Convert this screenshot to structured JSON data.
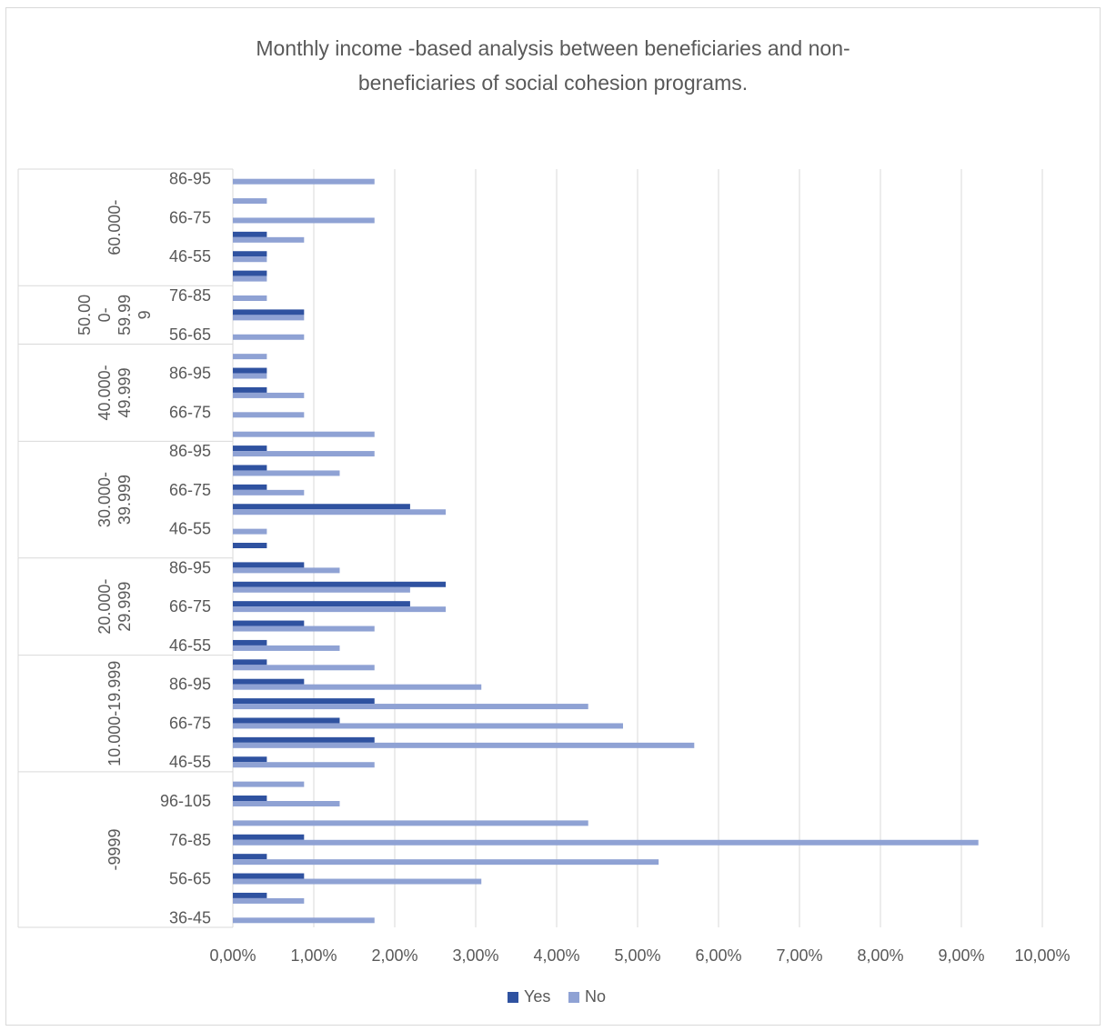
{
  "chart_data": {
    "type": "bar",
    "orientation": "horizontal",
    "title": "Monthly income -based analysis between beneficiaries and non-beneficiaries of social cohesion programs.",
    "title_lines": [
      "Monthly income -based analysis between beneficiaries and non-",
      "beneficiaries of social cohesion programs."
    ],
    "x_ticks": [
      "0,00%",
      "1,00%",
      "2,00%",
      "3,00%",
      "4,00%",
      "5,00%",
      "6,00%",
      "7,00%",
      "8,00%",
      "9,00%",
      "10,00%"
    ],
    "xlim": [
      0,
      10
    ],
    "grid": true,
    "legend_position": "bottom",
    "series": [
      {
        "name": "Yes",
        "color": "#2f52a0"
      },
      {
        "name": "No",
        "color": "#8fa2d4"
      }
    ],
    "groups": [
      {
        "label": "-9999",
        "label_lines": [
          "-9999"
        ],
        "rows": [
          {
            "label": "36-45",
            "yes": 0,
            "no": 1.75
          },
          {
            "label": "",
            "yes": 0.42,
            "no": 0.88
          },
          {
            "label": "56-65",
            "yes": 0.88,
            "no": 3.07
          },
          {
            "label": "",
            "yes": 0.42,
            "no": 5.26
          },
          {
            "label": "76-85",
            "yes": 0.88,
            "no": 9.21
          },
          {
            "label": "",
            "yes": 0,
            "no": 4.39
          },
          {
            "label": "96-105",
            "yes": 0.42,
            "no": 1.32
          },
          {
            "label": "",
            "yes": 0,
            "no": 0.88
          }
        ]
      },
      {
        "label": "10.000-19.999",
        "label_lines": [
          "10.000-19.999"
        ],
        "rows": [
          {
            "label": "46-55",
            "yes": 0.42,
            "no": 1.75
          },
          {
            "label": "",
            "yes": 1.75,
            "no": 5.7
          },
          {
            "label": "66-75",
            "yes": 1.32,
            "no": 4.82
          },
          {
            "label": "",
            "yes": 1.75,
            "no": 4.39
          },
          {
            "label": "86-95",
            "yes": 0.88,
            "no": 3.07
          },
          {
            "label": "",
            "yes": 0.42,
            "no": 1.75
          }
        ]
      },
      {
        "label": "20.000-29.999",
        "label_lines": [
          "20.000-",
          "29.999"
        ],
        "rows": [
          {
            "label": "46-55",
            "yes": 0.42,
            "no": 1.32
          },
          {
            "label": "",
            "yes": 0.88,
            "no": 1.75
          },
          {
            "label": "66-75",
            "yes": 2.19,
            "no": 2.63
          },
          {
            "label": "",
            "yes": 2.63,
            "no": 2.19
          },
          {
            "label": "86-95",
            "yes": 0.88,
            "no": 1.32
          }
        ]
      },
      {
        "label": "30.000-39.999",
        "label_lines": [
          "30.000-",
          "39.999"
        ],
        "rows": [
          {
            "label": "",
            "yes": 0.42,
            "no": 0
          },
          {
            "label": "46-55",
            "yes": 0,
            "no": 0.42
          },
          {
            "label": "",
            "yes": 2.19,
            "no": 2.63
          },
          {
            "label": "66-75",
            "yes": 0.42,
            "no": 0.88
          },
          {
            "label": "",
            "yes": 0.42,
            "no": 1.32
          },
          {
            "label": "86-95",
            "yes": 0.42,
            "no": 1.75
          }
        ]
      },
      {
        "label": "40.000-49.999",
        "label_lines": [
          "40.000-",
          "49.999"
        ],
        "rows": [
          {
            "label": "",
            "yes": 0,
            "no": 1.75
          },
          {
            "label": "66-75",
            "yes": 0,
            "no": 0.88
          },
          {
            "label": "",
            "yes": 0.42,
            "no": 0.88
          },
          {
            "label": "86-95",
            "yes": 0.42,
            "no": 0.42
          },
          {
            "label": "",
            "yes": 0,
            "no": 0.42
          }
        ]
      },
      {
        "label": "50.000-59.999",
        "label_lines": [
          "50.00",
          "0-",
          "59.99",
          "9"
        ],
        "rows": [
          {
            "label": "56-65",
            "yes": 0,
            "no": 0.88
          },
          {
            "label": "",
            "yes": 0.88,
            "no": 0.88
          },
          {
            "label": "76-85",
            "yes": 0,
            "no": 0.42
          }
        ]
      },
      {
        "label": "60.000-",
        "label_lines": [
          "60.000-"
        ],
        "rows": [
          {
            "label": "",
            "yes": 0.42,
            "no": 0.42
          },
          {
            "label": "46-55",
            "yes": 0.42,
            "no": 0.42
          },
          {
            "label": "",
            "yes": 0.42,
            "no": 0.88
          },
          {
            "label": "66-75",
            "yes": 0,
            "no": 1.75
          },
          {
            "label": "",
            "yes": 0,
            "no": 0.42
          },
          {
            "label": "86-95",
            "yes": 0,
            "no": 1.75
          }
        ]
      }
    ]
  }
}
